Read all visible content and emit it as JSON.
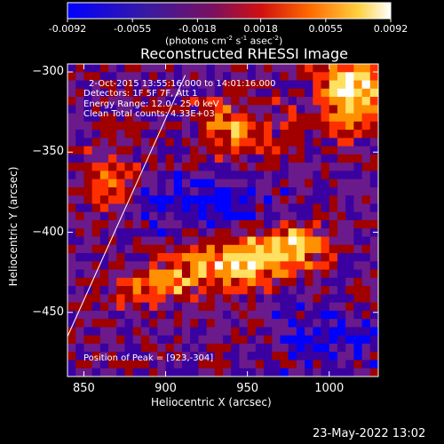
{
  "colorbar": {
    "ticks": [
      "-0.0092",
      "-0.0055",
      "-0.0018",
      "0.0018",
      "0.0055",
      "0.0092"
    ],
    "tick_values": [
      -0.0092,
      -0.0055,
      -0.0018,
      0.0018,
      0.0055,
      0.0092
    ],
    "unit_main": "(photons cm",
    "unit_sup1": "-2",
    "unit_mid": " s",
    "unit_sup2": "-1",
    "unit_mid2": " asec",
    "unit_sup3": "-2",
    "unit_end": ")"
  },
  "plot": {
    "title": "Reconstructed RHESSI Image",
    "time_range": "2-Oct-2015 13:55:16.000 to 14:01:16.000",
    "detectors": "Detectors: 1F 5F 7F, Att 1",
    "energy": "Energy Range: 12.0 - 25.0 keV",
    "clean": "Clean      Total counts: 4.33E+03",
    "peak": "Position of Peak = [923,-304]",
    "date_stamp": "23-May-2022 13:02"
  },
  "chart_data": {
    "type": "heatmap",
    "title": "Reconstructed RHESSI Image",
    "xlabel": "Heliocentric X (arcsec)",
    "ylabel": "Heliocentric Y (arcsec)",
    "xlim": [
      840,
      1030
    ],
    "ylim": [
      -490,
      -295
    ],
    "x_ticks": [
      850,
      900,
      950,
      1000
    ],
    "y_ticks": [
      -300,
      -350,
      -400,
      -450
    ],
    "value_range": [
      -0.0092,
      0.0092
    ],
    "colormap": [
      "#0000ff",
      "#3a00a0",
      "#6a1a8a",
      "#a00000",
      "#ff3000",
      "#ff9000",
      "#ffe060",
      "#ffffff"
    ],
    "limb_line": [
      [
        840,
        -465
      ],
      [
        912,
        -302
      ]
    ],
    "peak_position": [
      923,
      -304
    ]
  }
}
